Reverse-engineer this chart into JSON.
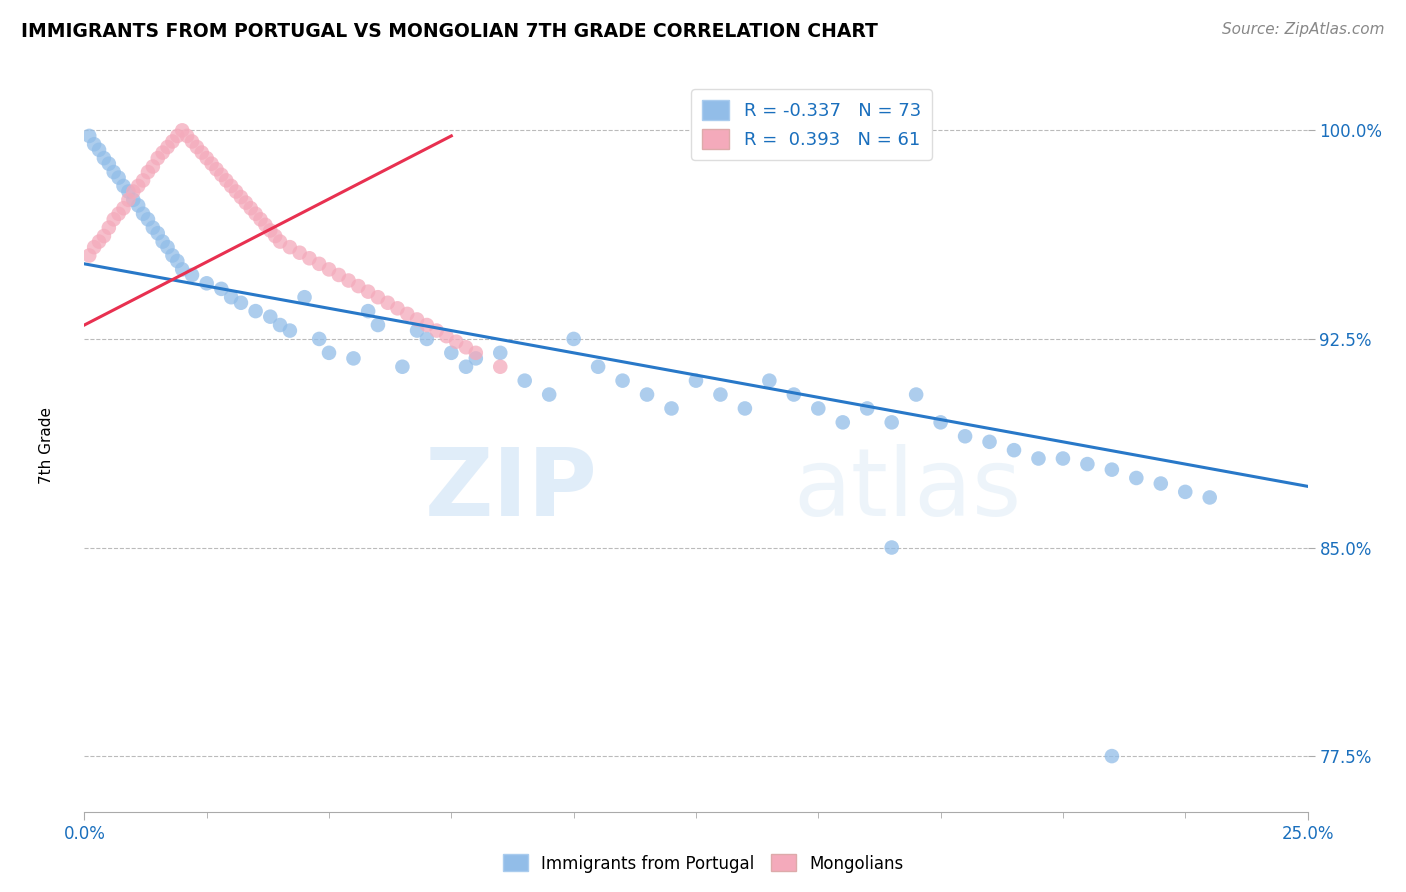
{
  "title": "IMMIGRANTS FROM PORTUGAL VS MONGOLIAN 7TH GRADE CORRELATION CHART",
  "source_text": "Source: ZipAtlas.com",
  "ylabel": "7th Grade",
  "watermark_zip": "ZIP",
  "watermark_atlas": "atlas",
  "xlim": [
    0.0,
    0.25
  ],
  "ylim": [
    0.755,
    1.018
  ],
  "yticks": [
    0.775,
    0.85,
    0.925,
    1.0
  ],
  "yticklabels": [
    "77.5%",
    "85.0%",
    "92.5%",
    "100.0%"
  ],
  "blue_color": "#92bde8",
  "pink_color": "#f4aabb",
  "blue_line_color": "#2878c8",
  "pink_line_color": "#e83050",
  "legend_blue_label": "R = -0.337   N = 73",
  "legend_pink_label": "R =  0.393   N = 61",
  "blue_line_x0": 0.0,
  "blue_line_x1": 0.25,
  "blue_line_y0": 0.952,
  "blue_line_y1": 0.872,
  "pink_line_x0": 0.0,
  "pink_line_x1": 0.075,
  "pink_line_y0": 0.93,
  "pink_line_y1": 0.998,
  "blue_scatter_x": [
    0.001,
    0.002,
    0.003,
    0.004,
    0.005,
    0.006,
    0.007,
    0.008,
    0.009,
    0.01,
    0.011,
    0.012,
    0.013,
    0.014,
    0.015,
    0.016,
    0.017,
    0.018,
    0.019,
    0.02,
    0.022,
    0.025,
    0.028,
    0.03,
    0.032,
    0.035,
    0.038,
    0.04,
    0.042,
    0.045,
    0.048,
    0.05,
    0.055,
    0.058,
    0.06,
    0.065,
    0.068,
    0.07,
    0.075,
    0.078,
    0.08,
    0.085,
    0.09,
    0.095,
    0.1,
    0.105,
    0.11,
    0.115,
    0.12,
    0.125,
    0.13,
    0.135,
    0.14,
    0.145,
    0.15,
    0.155,
    0.16,
    0.165,
    0.17,
    0.175,
    0.18,
    0.185,
    0.19,
    0.195,
    0.2,
    0.205,
    0.21,
    0.215,
    0.22,
    0.225,
    0.23,
    0.21,
    0.165
  ],
  "blue_scatter_y": [
    0.998,
    0.995,
    0.993,
    0.99,
    0.988,
    0.985,
    0.983,
    0.98,
    0.978,
    0.975,
    0.973,
    0.97,
    0.968,
    0.965,
    0.963,
    0.96,
    0.958,
    0.955,
    0.953,
    0.95,
    0.948,
    0.945,
    0.943,
    0.94,
    0.938,
    0.935,
    0.933,
    0.93,
    0.928,
    0.94,
    0.925,
    0.92,
    0.918,
    0.935,
    0.93,
    0.915,
    0.928,
    0.925,
    0.92,
    0.915,
    0.918,
    0.92,
    0.91,
    0.905,
    0.925,
    0.915,
    0.91,
    0.905,
    0.9,
    0.91,
    0.905,
    0.9,
    0.91,
    0.905,
    0.9,
    0.895,
    0.9,
    0.895,
    0.905,
    0.895,
    0.89,
    0.888,
    0.885,
    0.882,
    0.882,
    0.88,
    0.878,
    0.875,
    0.873,
    0.87,
    0.868,
    0.775,
    0.85
  ],
  "pink_scatter_x": [
    0.001,
    0.002,
    0.003,
    0.004,
    0.005,
    0.006,
    0.007,
    0.008,
    0.009,
    0.01,
    0.011,
    0.012,
    0.013,
    0.014,
    0.015,
    0.016,
    0.017,
    0.018,
    0.019,
    0.02,
    0.021,
    0.022,
    0.023,
    0.024,
    0.025,
    0.026,
    0.027,
    0.028,
    0.029,
    0.03,
    0.031,
    0.032,
    0.033,
    0.034,
    0.035,
    0.036,
    0.037,
    0.038,
    0.039,
    0.04,
    0.042,
    0.044,
    0.046,
    0.048,
    0.05,
    0.052,
    0.054,
    0.056,
    0.058,
    0.06,
    0.062,
    0.064,
    0.066,
    0.068,
    0.07,
    0.072,
    0.074,
    0.076,
    0.078,
    0.08,
    0.085
  ],
  "pink_scatter_y": [
    0.955,
    0.958,
    0.96,
    0.962,
    0.965,
    0.968,
    0.97,
    0.972,
    0.975,
    0.978,
    0.98,
    0.982,
    0.985,
    0.987,
    0.99,
    0.992,
    0.994,
    0.996,
    0.998,
    1.0,
    0.998,
    0.996,
    0.994,
    0.992,
    0.99,
    0.988,
    0.986,
    0.984,
    0.982,
    0.98,
    0.978,
    0.976,
    0.974,
    0.972,
    0.97,
    0.968,
    0.966,
    0.964,
    0.962,
    0.96,
    0.958,
    0.956,
    0.954,
    0.952,
    0.95,
    0.948,
    0.946,
    0.944,
    0.942,
    0.94,
    0.938,
    0.936,
    0.934,
    0.932,
    0.93,
    0.928,
    0.926,
    0.924,
    0.922,
    0.92,
    0.915
  ]
}
